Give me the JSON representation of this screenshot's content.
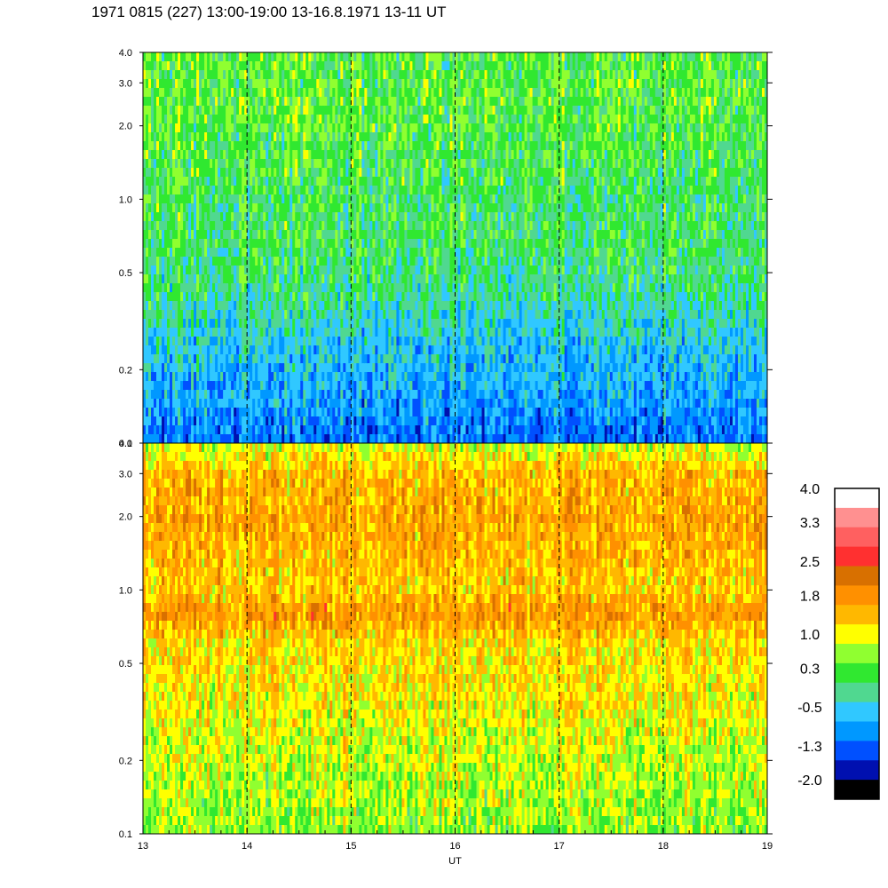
{
  "title": "1971 0815 (227) 13:00-19:00 13-16.8.1971  13-11 UT",
  "chart_data": {
    "type": "heatmap",
    "xlabel": "UT",
    "xlim": [
      13,
      19
    ],
    "x_ticks": [
      "13",
      "14",
      "15",
      "16",
      "17",
      "18",
      "19"
    ],
    "x_dashed_gridlines": [
      14,
      15,
      16,
      17,
      18
    ],
    "y_scale": "log",
    "ylim": [
      0.1,
      4.0
    ],
    "panels": [
      {
        "name": "upper",
        "y_ticks": [
          "0.1",
          "0.2",
          "0.5",
          "1.0",
          "2.0",
          "3.0",
          "4.0"
        ],
        "y_values": [
          0.1,
          0.2,
          0.5,
          1.0,
          2.0,
          3.0,
          4.0
        ],
        "levels_by_y": [
          {
            "y": 0.1,
            "level": -0.9
          },
          {
            "y": 0.15,
            "level": -0.6
          },
          {
            "y": 0.25,
            "level": -0.3
          },
          {
            "y": 0.4,
            "level": 0.1
          },
          {
            "y": 0.7,
            "level": 0.3
          },
          {
            "y": 1.0,
            "level": 0.3
          },
          {
            "y": 2.0,
            "level": 0.5
          },
          {
            "y": 4.0,
            "level": 0.5
          }
        ]
      },
      {
        "name": "lower",
        "y_ticks": [
          "0.1",
          "0.2",
          "0.5",
          "1.0",
          "2.0",
          "3.0",
          "4.0"
        ],
        "y_values": [
          0.1,
          0.2,
          0.5,
          1.0,
          2.0,
          3.0,
          4.0
        ],
        "levels_by_y": [
          {
            "y": 0.1,
            "level": 0.8
          },
          {
            "y": 0.2,
            "level": 1.0
          },
          {
            "y": 0.4,
            "level": 1.3
          },
          {
            "y": 0.6,
            "level": 1.4
          },
          {
            "y": 0.8,
            "level": 1.9
          },
          {
            "y": 1.0,
            "level": 1.5
          },
          {
            "y": 2.0,
            "level": 1.8
          },
          {
            "y": 3.0,
            "level": 1.6
          },
          {
            "y": 4.0,
            "level": 1.0
          }
        ]
      }
    ],
    "colorbar": {
      "labels": [
        "4.0",
        "3.3",
        "2.5",
        "1.8",
        "1.0",
        "0.3",
        "-0.5",
        "-1.3",
        "-2.0"
      ],
      "label_values": [
        4.0,
        3.3,
        2.5,
        1.8,
        1.0,
        0.3,
        -0.5,
        -1.3,
        -2.0
      ],
      "colors_top_to_bottom": [
        "#ffffff",
        "#ff9090",
        "#ff6060",
        "#ff3030",
        "#d87000",
        "#ff9000",
        "#ffb800",
        "#ffff00",
        "#90ff30",
        "#30e830",
        "#50d890",
        "#30c8ff",
        "#0098ff",
        "#0050ff",
        "#0010b0",
        "#000000"
      ],
      "range": [
        -2.0,
        4.0
      ]
    }
  }
}
